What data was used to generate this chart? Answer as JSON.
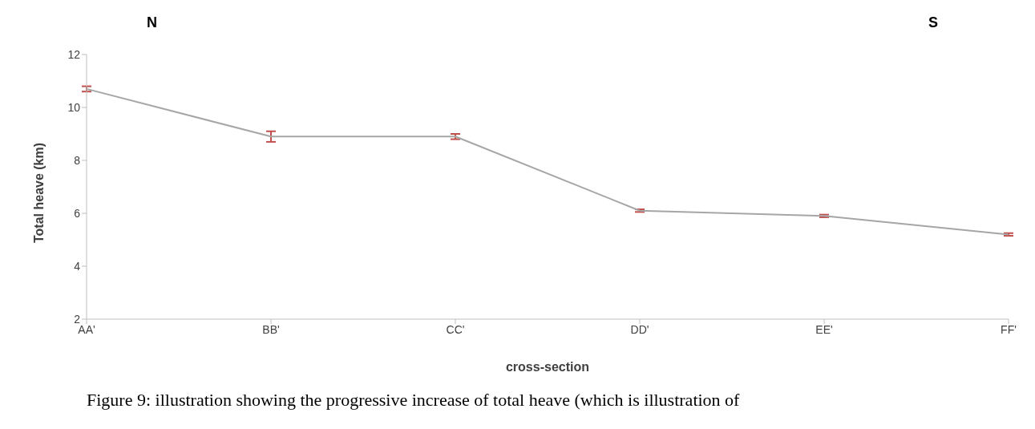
{
  "chart_data": {
    "type": "line",
    "xlabel": "cross-section",
    "ylabel": "Total heave (km)",
    "categories": [
      "AA'",
      "BB'",
      "CC'",
      "DD'",
      "EE'",
      "FF'"
    ],
    "series": [
      {
        "color": "#a6a6a6",
        "values": [
          10.7,
          8.9,
          8.9,
          6.1,
          5.9,
          5.2
        ],
        "errors": [
          0.1,
          0.2,
          0.1,
          0.05,
          0.05,
          0.05
        ]
      }
    ],
    "ylim": [
      2,
      12
    ],
    "yticks": [
      2,
      4,
      6,
      8,
      10,
      12
    ],
    "grid": false,
    "legend": false,
    "marker": "none",
    "line_style": "solid",
    "annotations": [
      "N",
      "S",
      "Figure 9: illustration showing the progressive increase of total heave (which is illustration of"
    ]
  }
}
